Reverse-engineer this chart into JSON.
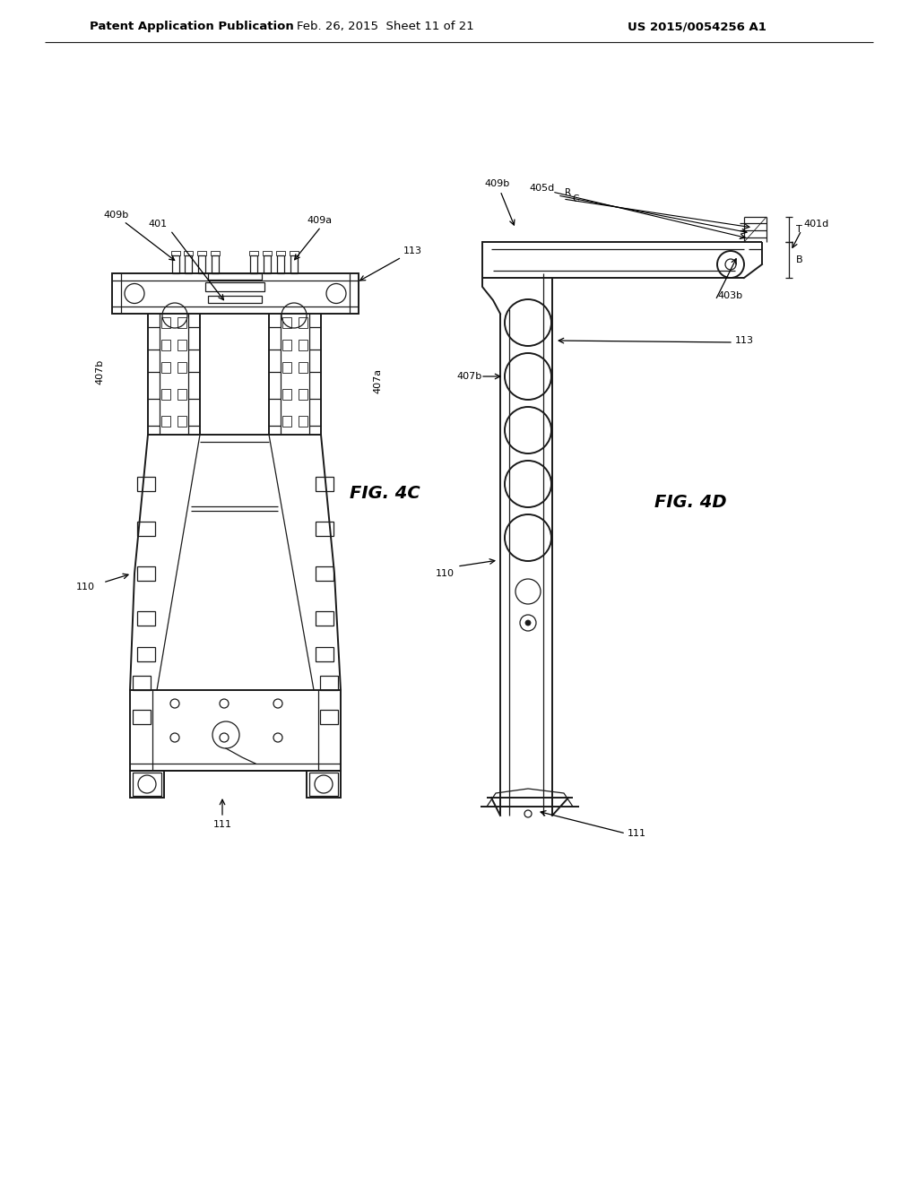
{
  "bg_color": "#ffffff",
  "header_left": "Patent Application Publication",
  "header_mid": "Feb. 26, 2015  Sheet 11 of 21",
  "header_right": "US 2015/0054256 A1",
  "fig4c_label": "FIG. 4C",
  "fig4d_label": "FIG. 4D",
  "line_color": "#1a1a1a",
  "lw_main": 1.4,
  "lw_thin": 0.9,
  "lw_hair": 0.6
}
